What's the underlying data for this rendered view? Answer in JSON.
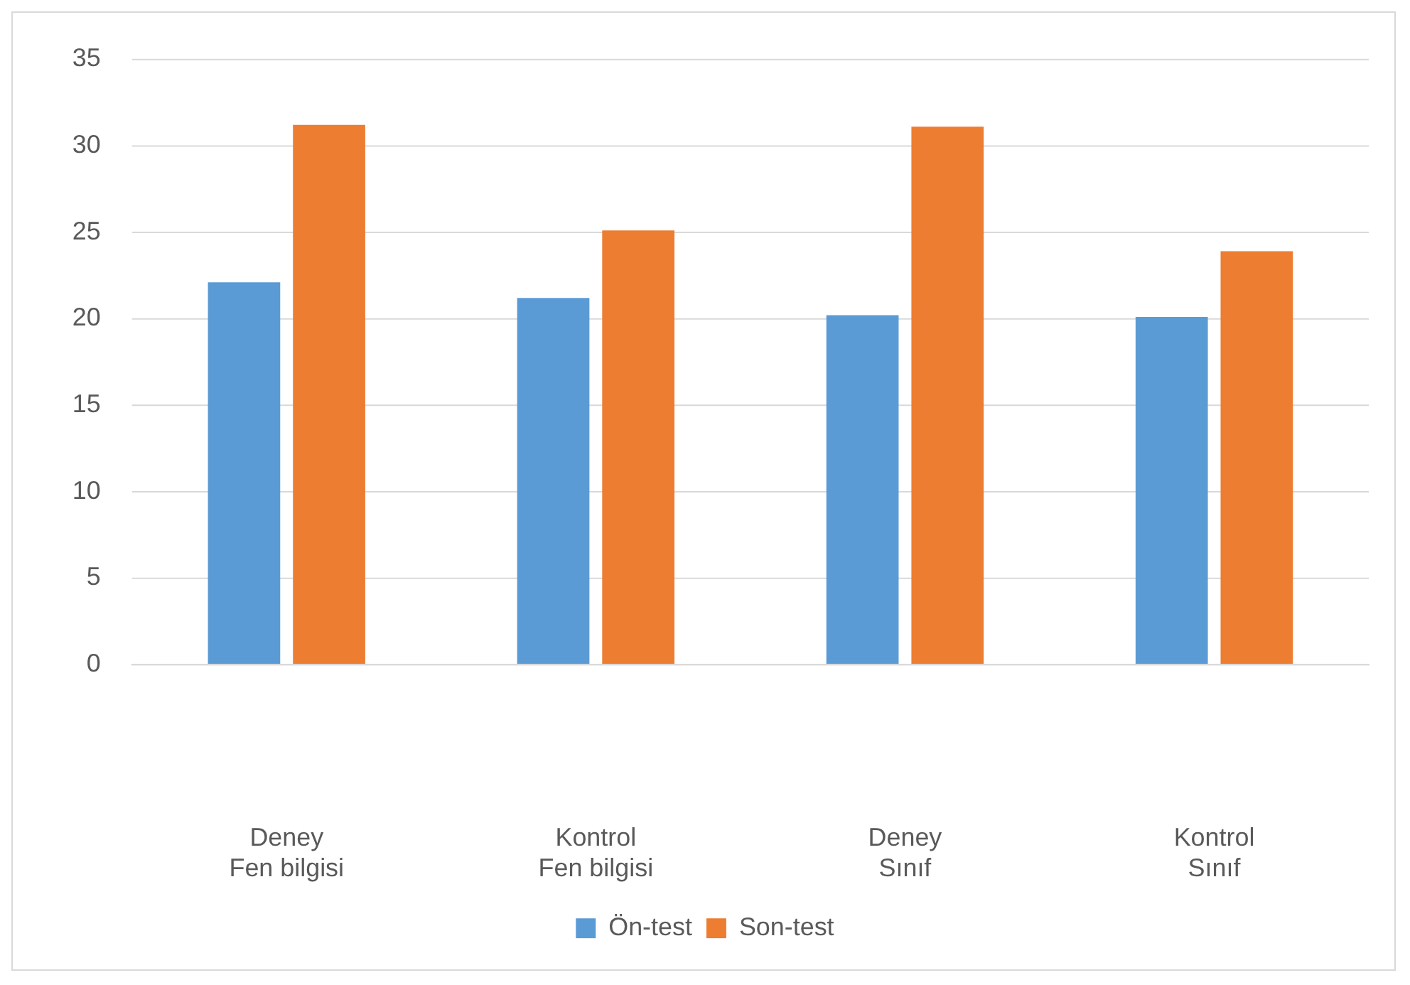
{
  "chart_data": {
    "type": "bar",
    "categories": [
      "Deney\nFen bilgisi",
      "Kontrol\nFen bilgisi",
      "Deney\nSınıf",
      "Kontrol\nSınıf"
    ],
    "series": [
      {
        "name": "Ön-test",
        "color": "#5b9bd5",
        "values": [
          22.1,
          21.2,
          20.2,
          20.1
        ]
      },
      {
        "name": "Son-test",
        "color": "#ed7d31",
        "values": [
          31.2,
          25.1,
          31.1,
          23.9
        ]
      }
    ],
    "ylim": [
      0,
      35
    ],
    "yticks": [
      0,
      5,
      10,
      15,
      20,
      25,
      30,
      35
    ],
    "grid": "y",
    "legend": "bottom"
  }
}
